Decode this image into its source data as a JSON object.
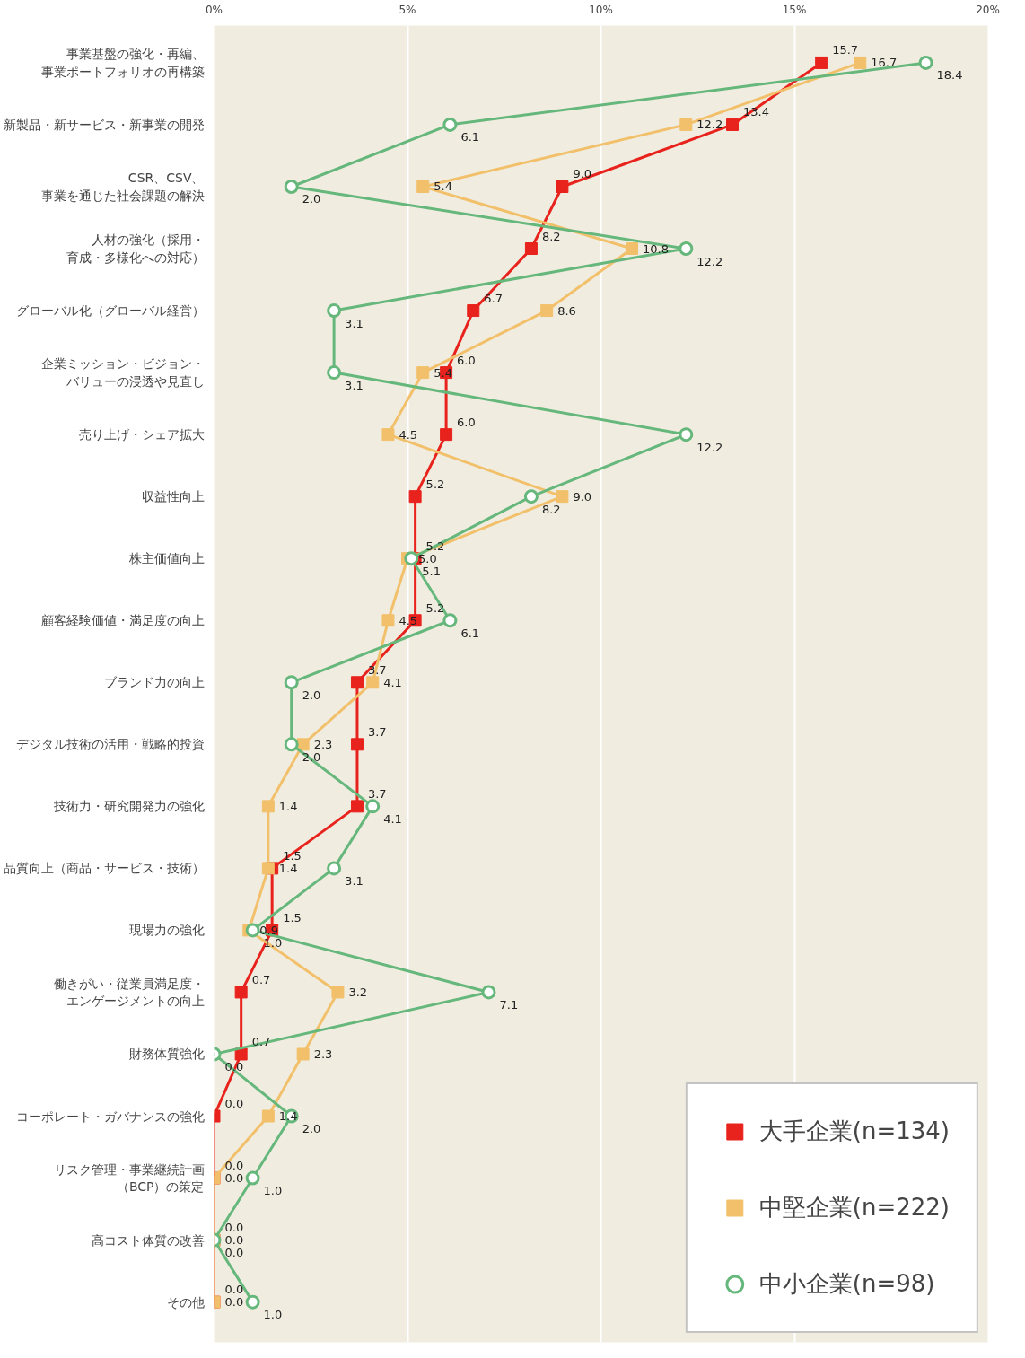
{
  "chart_data": {
    "type": "line",
    "orientation": "horizontal",
    "categories": [
      "事業基盤の強化・再編、事業ポートフォリオの再構築",
      "新製品・新サービス・新事業の開発",
      "CSR、CSV、事業を通じた社会課題の解決",
      "人材の強化（採用・育成・多様化への対応）",
      "グローバル化（グローバル経営）",
      "企業ミッション・ビジョン・バリューの浸透や見直し",
      "売り上げ・シェア拡大",
      "収益性向上",
      "株主価値向上",
      "顧客経験価値・満足度の向上",
      "ブランド力の向上",
      "デジタル技術の活用・戦略的投資",
      "技術力・研究開発力の強化",
      "品質向上（商品・サービス・技術）",
      "現場力の強化",
      "働きがい・従業員満足度・エンゲージメントの向上",
      "財務体質強化",
      "コーポレート・ガバナンスの強化",
      "リスク管理・事業継続計画（BCP）の策定",
      "高コスト体質の改善",
      "その他"
    ],
    "series": [
      {
        "name": "大手企業(n=134)",
        "color": "#e8221c",
        "marker": "square",
        "values": [
          15.7,
          13.4,
          9.0,
          8.2,
          6.7,
          6.0,
          6.0,
          5.2,
          5.2,
          5.2,
          3.7,
          3.7,
          3.7,
          1.5,
          1.5,
          0.7,
          0.7,
          0.0,
          0.0,
          0.0,
          0.0
        ],
        "value_labels": [
          "15.7",
          "13.4",
          "9.0",
          "8.2",
          "6.7",
          "6.0",
          "6.0",
          "5.2",
          "5.2",
          "5.2",
          "3.7",
          "3.7",
          "3.7",
          "1.5",
          "1.5",
          "0.7",
          "0.7",
          "0.0",
          "0.0",
          "0.0",
          "0.0"
        ]
      },
      {
        "name": "中堅企業(n=222)",
        "color": "#f2c06b",
        "marker": "square",
        "values": [
          16.7,
          12.2,
          5.4,
          10.8,
          8.6,
          5.4,
          4.5,
          9.0,
          5.0,
          4.5,
          4.1,
          2.3,
          1.4,
          1.4,
          0.9,
          3.2,
          2.3,
          1.4,
          0.0,
          0.0,
          0.0
        ],
        "value_labels": [
          "16.7",
          "12.2",
          "5.4",
          "10.8",
          "8.6",
          "5.4",
          "4.5",
          "9.0",
          "5.0",
          "4.5",
          "4.1",
          "2.3",
          "1.4",
          "1.4",
          "0.9",
          "3.2",
          "2.3",
          "1.4",
          "0.0",
          "0.0",
          "0.0"
        ]
      },
      {
        "name": "中小企業(n=98)",
        "color": "#66b77c",
        "marker": "circle",
        "values": [
          18.4,
          6.1,
          2.0,
          12.2,
          3.1,
          3.1,
          12.2,
          8.2,
          5.1,
          6.1,
          2.0,
          2.0,
          4.1,
          3.1,
          1.0,
          7.1,
          0.0,
          2.0,
          1.0,
          0.0,
          1.0
        ],
        "value_labels": [
          "18.4",
          "6.1",
          "2.0",
          "12.2",
          "3.1",
          "3.1",
          "12.2",
          "8.2",
          "5.1",
          "6.1",
          "2.0",
          "2.0",
          "4.1",
          "3.1",
          "1.0",
          "7.1",
          "0.0",
          "2.0",
          "1.0",
          "0.0",
          "1.0"
        ]
      }
    ],
    "xlim": [
      0,
      20
    ],
    "xticks": [
      {
        "value": 0,
        "label": "0%"
      },
      {
        "value": 5,
        "label": "5%"
      },
      {
        "value": 10,
        "label": "10%"
      },
      {
        "value": 15,
        "label": "15%"
      },
      {
        "value": 20,
        "label": "20%"
      }
    ],
    "grid": "x",
    "legend": "bottom right",
    "line_style": "solid"
  }
}
